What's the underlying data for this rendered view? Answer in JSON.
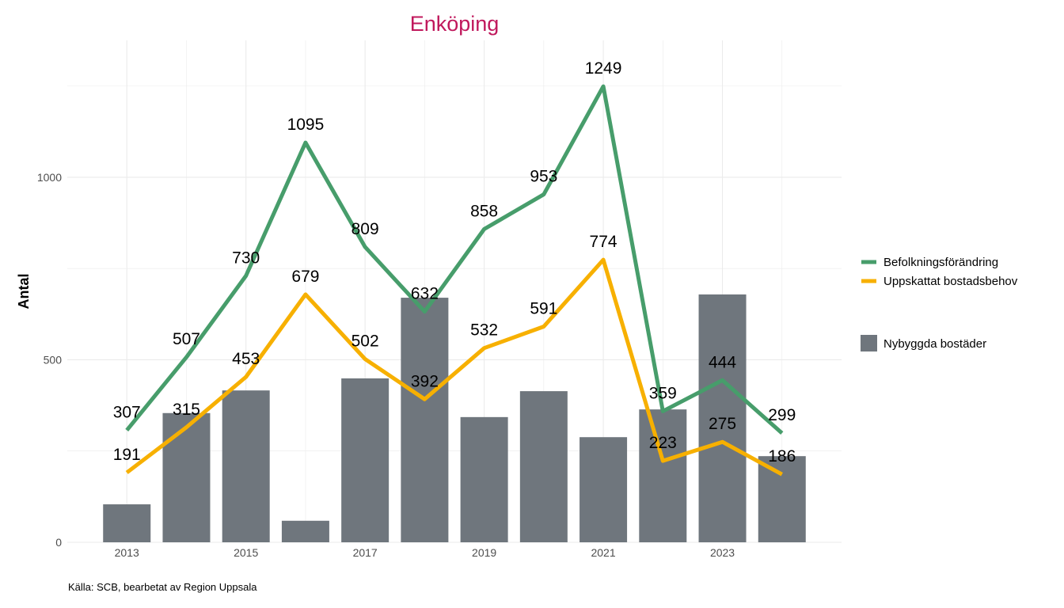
{
  "chart_data": {
    "type": "bar+line",
    "title": "Enköping",
    "xlabel": "",
    "ylabel": "Antal",
    "caption": "Källa: SCB, bearbetat av Region Uppsala",
    "x": [
      2013,
      2014,
      2015,
      2016,
      2017,
      2018,
      2019,
      2020,
      2021,
      2022,
      2023,
      2024
    ],
    "x_ticks": [
      2013,
      2015,
      2017,
      2019,
      2021,
      2023
    ],
    "y_ticks": [
      0,
      500,
      1000
    ],
    "xlim": [
      2012,
      2025
    ],
    "ylim": [
      0,
      1375
    ],
    "grid": true,
    "legend_position": "right",
    "bars": {
      "name": "Nybyggda bostäder",
      "color": "#6f767d",
      "values": [
        104,
        354,
        416,
        59,
        449,
        670,
        343,
        414,
        288,
        364,
        679,
        236
      ]
    },
    "series": [
      {
        "name": "Befolkningsförändring",
        "color": "#479d6b",
        "values": [
          307,
          507,
          730,
          1095,
          809,
          632,
          858,
          953,
          1249,
          359,
          444,
          299
        ]
      },
      {
        "name": "Uppskattat bostadsbehov",
        "color": "#f7b000",
        "values": [
          191,
          315,
          453,
          679,
          502,
          392,
          532,
          591,
          774,
          223,
          275,
          186
        ]
      }
    ],
    "title_color": "#c0185c"
  }
}
